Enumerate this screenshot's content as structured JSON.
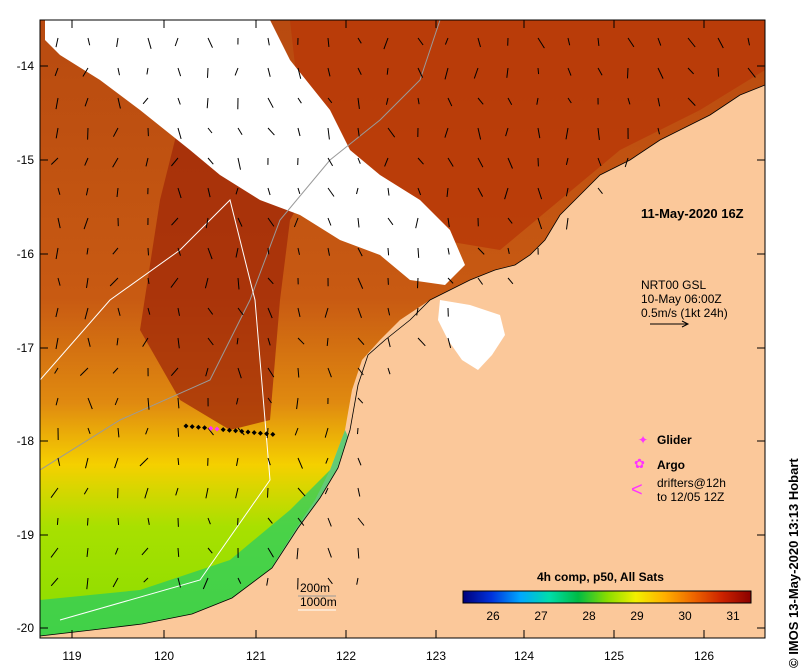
{
  "map": {
    "date_label": "11-May-2020 16Z",
    "current_info": {
      "line1": "NRT00 GSL",
      "line2": "10-May 06:00Z",
      "line3": "0.5m/s (1kt 24h)"
    },
    "legend": {
      "glider": "Glider",
      "argo": "Argo",
      "drifters_line1": "drifters@12h",
      "drifters_line2": "to 12/05 12Z",
      "glider_color": "#ff33ff",
      "argo_color": "#ff33ff"
    },
    "colorbar": {
      "title": "4h comp, p50, All Sats",
      "ticks": [
        "26",
        "27",
        "28",
        "29",
        "30",
        "31"
      ],
      "stops": [
        "#00007a",
        "#0033dd",
        "#00a8ff",
        "#00ddaa",
        "#00bb44",
        "#88dd00",
        "#f2f000",
        "#ffb000",
        "#ee6600",
        "#cc2200",
        "#8a0000"
      ]
    },
    "isobaths": {
      "line1": "200m",
      "line2": "1000m"
    },
    "x_ticks": [
      "119",
      "120",
      "121",
      "122",
      "123",
      "124",
      "125",
      "126"
    ],
    "y_ticks": [
      "-14",
      "-15",
      "-16",
      "-17",
      "-18",
      "-19",
      "-20"
    ],
    "credit": "© IMOS 13-May-2020 13:13 Hobart",
    "colors": {
      "land": "#fbc89a",
      "cloud": "#ffffff"
    }
  }
}
